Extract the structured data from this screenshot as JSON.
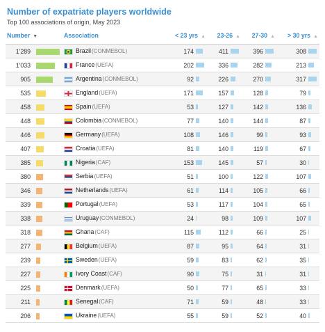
{
  "title": "Number of expatriate players worldwide",
  "subtitle": "Top 100 associations of origin, May 2023",
  "headers": {
    "number": "Number",
    "association": "Association",
    "u23": "< 23 yrs",
    "a23_26": "23-26",
    "a27_30": "27-30",
    "o30": "> 30 yrs"
  },
  "sort_icon": "triangle-down-icon",
  "colors": {
    "title": "#3a8fd0",
    "bar_green": "#a9d86e",
    "bar_yellow": "#f5dc6a",
    "bar_orange": "#f4b574",
    "value_bar": "#a9d4ee"
  },
  "rows": [
    {
      "total": "1'289",
      "country": "Brazil",
      "conf": "(CONMEBOL)",
      "flag": "brazil-flag-icon",
      "u23": "174",
      "a23_26": "411",
      "a27_30": "396",
      "o30": "308",
      "bar_color": "green",
      "bar_level": 1.0
    },
    {
      "total": "1'033",
      "country": "France",
      "conf": "(UEFA)",
      "flag": "france-flag-icon",
      "u23": "202",
      "a23_26": "336",
      "a27_30": "282",
      "o30": "213",
      "bar_color": "green",
      "bar_level": 0.8
    },
    {
      "total": "905",
      "country": "Argentina",
      "conf": "(CONMEBOL)",
      "flag": "argentina-flag-icon",
      "u23": "92",
      "a23_26": "226",
      "a27_30": "270",
      "o30": "317",
      "bar_color": "green",
      "bar_level": 0.7
    },
    {
      "total": "535",
      "country": "England",
      "conf": "(UEFA)",
      "flag": "england-flag-icon",
      "u23": "171",
      "a23_26": "157",
      "a27_30": "128",
      "o30": "79",
      "bar_color": "yellow",
      "bar_level": 0.42
    },
    {
      "total": "458",
      "country": "Spain",
      "conf": "(UEFA)",
      "flag": "spain-flag-icon",
      "u23": "53",
      "a23_26": "127",
      "a27_30": "142",
      "o30": "136",
      "bar_color": "yellow",
      "bar_level": 0.36
    },
    {
      "total": "448",
      "country": "Colombia",
      "conf": "(CONMEBOL)",
      "flag": "colombia-flag-icon",
      "u23": "77",
      "a23_26": "140",
      "a27_30": "144",
      "o30": "87",
      "bar_color": "yellow",
      "bar_level": 0.35
    },
    {
      "total": "446",
      "country": "Germany",
      "conf": "(UEFA)",
      "flag": "germany-flag-icon",
      "u23": "108",
      "a23_26": "146",
      "a27_30": "99",
      "o30": "93",
      "bar_color": "yellow",
      "bar_level": 0.35
    },
    {
      "total": "407",
      "country": "Croatia",
      "conf": "(UEFA)",
      "flag": "croatia-flag-icon",
      "u23": "81",
      "a23_26": "140",
      "a27_30": "119",
      "o30": "67",
      "bar_color": "yellow",
      "bar_level": 0.32
    },
    {
      "total": "385",
      "country": "Nigeria",
      "conf": "(CAF)",
      "flag": "nigeria-flag-icon",
      "u23": "153",
      "a23_26": "145",
      "a27_30": "57",
      "o30": "30",
      "bar_color": "yellow",
      "bar_level": 0.3
    },
    {
      "total": "380",
      "country": "Serbia",
      "conf": "(UEFA)",
      "flag": "serbia-flag-icon",
      "u23": "51",
      "a23_26": "100",
      "a27_30": "122",
      "o30": "107",
      "bar_color": "orange",
      "bar_level": 0.3
    },
    {
      "total": "346",
      "country": "Netherlands",
      "conf": "(UEFA)",
      "flag": "netherlands-flag-icon",
      "u23": "61",
      "a23_26": "114",
      "a27_30": "105",
      "o30": "66",
      "bar_color": "orange",
      "bar_level": 0.27
    },
    {
      "total": "339",
      "country": "Portugal",
      "conf": "(UEFA)",
      "flag": "portugal-flag-icon",
      "u23": "53",
      "a23_26": "117",
      "a27_30": "104",
      "o30": "65",
      "bar_color": "orange",
      "bar_level": 0.26
    },
    {
      "total": "338",
      "country": "Uruguay",
      "conf": "(CONMEBOL)",
      "flag": "uruguay-flag-icon",
      "u23": "24",
      "a23_26": "98",
      "a27_30": "109",
      "o30": "107",
      "bar_color": "orange",
      "bar_level": 0.26
    },
    {
      "total": "318",
      "country": "Ghana",
      "conf": "(CAF)",
      "flag": "ghana-flag-icon",
      "u23": "115",
      "a23_26": "112",
      "a27_30": "66",
      "o30": "25",
      "bar_color": "orange",
      "bar_level": 0.25
    },
    {
      "total": "277",
      "country": "Belgium",
      "conf": "(UEFA)",
      "flag": "belgium-flag-icon",
      "u23": "87",
      "a23_26": "95",
      "a27_30": "64",
      "o30": "31",
      "bar_color": "orange",
      "bar_level": 0.21
    },
    {
      "total": "239",
      "country": "Sweden",
      "conf": "(UEFA)",
      "flag": "sweden-flag-icon",
      "u23": "59",
      "a23_26": "83",
      "a27_30": "62",
      "o30": "35",
      "bar_color": "orange",
      "bar_level": 0.19
    },
    {
      "total": "227",
      "country": "Ivory Coast",
      "conf": "(CAF)",
      "flag": "ivory-coast-flag-icon",
      "u23": "90",
      "a23_26": "75",
      "a27_30": "31",
      "o30": "31",
      "bar_color": "orange",
      "bar_level": 0.18
    },
    {
      "total": "225",
      "country": "Denmark",
      "conf": "(UEFA)",
      "flag": "denmark-flag-icon",
      "u23": "50",
      "a23_26": "77",
      "a27_30": "65",
      "o30": "33",
      "bar_color": "orange",
      "bar_level": 0.17
    },
    {
      "total": "211",
      "country": "Senegal",
      "conf": "(CAF)",
      "flag": "senegal-flag-icon",
      "u23": "71",
      "a23_26": "59",
      "a27_30": "48",
      "o30": "33",
      "bar_color": "orange",
      "bar_level": 0.16
    },
    {
      "total": "206",
      "country": "Ukraine",
      "conf": "(UEFA)",
      "flag": "ukraine-flag-icon",
      "u23": "55",
      "a23_26": "59",
      "a27_30": "52",
      "o30": "40",
      "bar_color": "orange",
      "bar_level": 0.16
    }
  ]
}
